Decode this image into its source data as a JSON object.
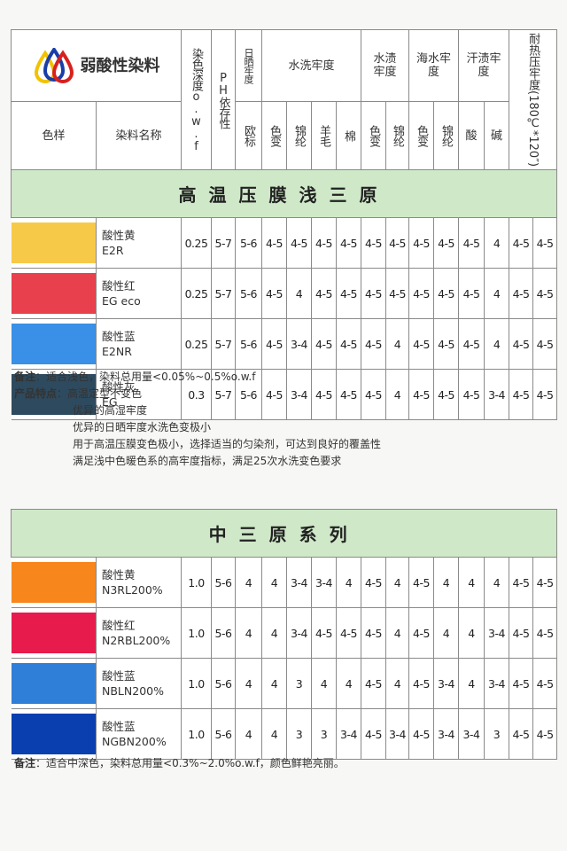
{
  "brand_title": "弱酸性染料",
  "headers": {
    "swatch": "色样",
    "name": "染料名称",
    "depth": "染色深度o.w.f",
    "ph": "PH依存性",
    "light": "日晒牢度",
    "light_sub": "欧标",
    "wash": "水洗牢度",
    "wash_sub": [
      "色变",
      "锦纶",
      "羊毛",
      "棉"
    ],
    "water": "水渍牢度",
    "water_sub": [
      "色变",
      "锦纶"
    ],
    "sea": "海水牢度",
    "sea_sub": [
      "色变",
      "锦纶"
    ],
    "sweat": "汗渍牢度",
    "sweat_sub": [
      "酸",
      "碱"
    ],
    "heat": "耐热压牢度(180℃*120″)"
  },
  "section1": {
    "title": "高温压膜浅三原",
    "rows": [
      {
        "color": "#f7c948",
        "name": "酸性黄",
        "code": "E2R",
        "values": [
          "0.25",
          "5-7",
          "5-6",
          "4-5",
          "4-5",
          "4-5",
          "4-5",
          "4-5",
          "4-5",
          "4-5",
          "4-5",
          "4-5",
          "4",
          "4-5",
          "4-5"
        ]
      },
      {
        "color": "#e8404c",
        "name": "酸性红",
        "code": "EG eco",
        "values": [
          "0.25",
          "5-7",
          "5-6",
          "4-5",
          "4",
          "4-5",
          "4-5",
          "4-5",
          "4-5",
          "4-5",
          "4-5",
          "4-5",
          "4",
          "4-5",
          "4-5"
        ]
      },
      {
        "color": "#3a8fe6",
        "name": "酸性蓝",
        "code": "E2NR",
        "values": [
          "0.25",
          "5-7",
          "5-6",
          "4-5",
          "3-4",
          "4-5",
          "4-5",
          "4-5",
          "4",
          "4-5",
          "4-5",
          "4-5",
          "4",
          "4-5",
          "4-5"
        ]
      },
      {
        "color": "#2e4a5e",
        "name": "酸性灰",
        "code": "EG",
        "values": [
          "0.3",
          "5-7",
          "5-6",
          "4-5",
          "3-4",
          "4-5",
          "4-5",
          "4-5",
          "4",
          "4-5",
          "4-5",
          "4-5",
          "3-4",
          "4-5",
          "4-5"
        ]
      }
    ],
    "remark_label": "备注",
    "remark": "适合浅色，染料总用量<0.05%~0.5%o.w.f",
    "features_label": "产品特点",
    "features": [
      "高温定型不变色",
      "优异的高湿牢度",
      "优异的日晒牢度水洗色变极小",
      "用于高温压膜变色极小，选择适当的匀染剂，可达到良好的覆盖性",
      "满足浅中色暖色系的高牢度指标，满足25次水洗变色要求"
    ]
  },
  "section2": {
    "title": "中三原系列",
    "rows": [
      {
        "color": "#f7861c",
        "name": "酸性黄",
        "code": "N3RL200%",
        "values": [
          "1.0",
          "5-6",
          "4",
          "4",
          "3-4",
          "3-4",
          "4",
          "4-5",
          "4",
          "4-5",
          "4",
          "4",
          "4",
          "4-5",
          "4-5"
        ]
      },
      {
        "color": "#e81c4c",
        "name": "酸性红",
        "code": "N2RBL200%",
        "values": [
          "1.0",
          "5-6",
          "4",
          "4",
          "3-4",
          "4-5",
          "4-5",
          "4-5",
          "4",
          "4-5",
          "4",
          "4",
          "3-4",
          "4-5",
          "4-5"
        ]
      },
      {
        "color": "#2f7fd8",
        "name": "酸性蓝",
        "code": "NBLN200%",
        "values": [
          "1.0",
          "5-6",
          "4",
          "4",
          "3",
          "4",
          "4",
          "4-5",
          "4",
          "4-5",
          "3-4",
          "4",
          "3-4",
          "4-5",
          "4-5"
        ]
      },
      {
        "color": "#0a3fb0",
        "name": "酸性蓝",
        "code": "NGBN200%",
        "values": [
          "1.0",
          "5-6",
          "4",
          "4",
          "3",
          "3",
          "3-4",
          "4-5",
          "3-4",
          "4-5",
          "3-4",
          "3-4",
          "3",
          "4-5",
          "4-5"
        ]
      }
    ],
    "remark_label": "备注",
    "remark": "适合中深色，染料总用量<0.3%~2.0%o.w.f，颜色鲜艳亮丽。"
  }
}
